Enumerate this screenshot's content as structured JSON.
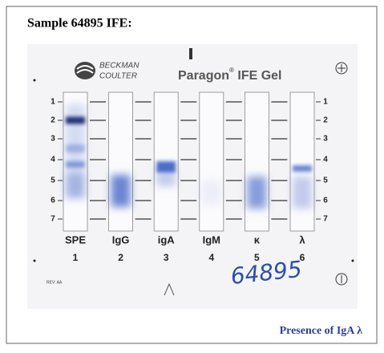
{
  "header": {
    "title": "Sample 64895 IFE:"
  },
  "gel": {
    "brand": [
      "BECKMAN",
      "COULTER"
    ],
    "product": "Paragon",
    "product_mark": "®",
    "product_rest": " IFE Gel",
    "lanes": [
      {
        "label": "SPE",
        "number": 1
      },
      {
        "label": "IgG",
        "number": 2
      },
      {
        "label": "igA",
        "number": 3
      },
      {
        "label": "IgM",
        "number": 4
      },
      {
        "label": "κ",
        "number": 5
      },
      {
        "label": "λ",
        "number": 6
      }
    ],
    "row_numbers": [
      1,
      2,
      3,
      4,
      5,
      6,
      7
    ],
    "handwritten": "64895",
    "revision": "REV: AA"
  },
  "caption": "Presence of IgA λ"
}
